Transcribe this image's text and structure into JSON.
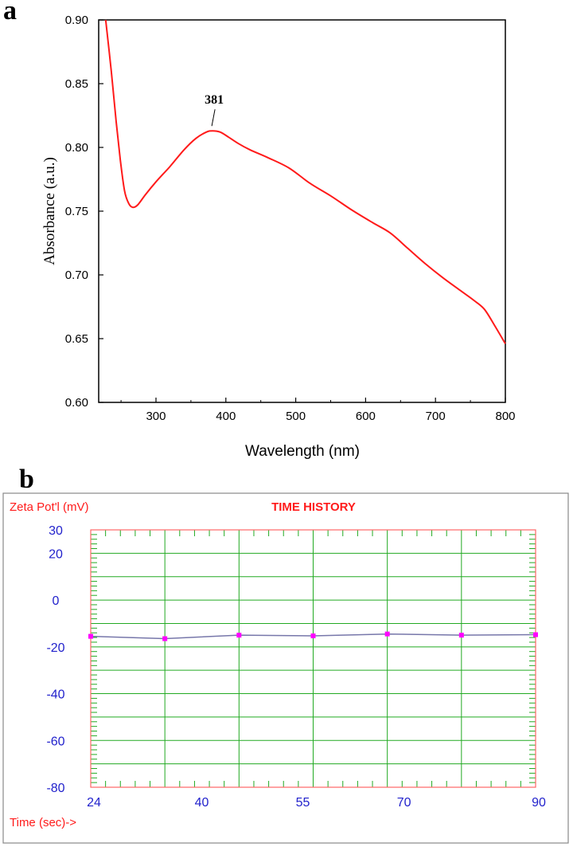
{
  "chart_data": [
    {
      "panel": "a",
      "type": "line",
      "xlabel": "Wavelength (nm)",
      "ylabel": "Absorbance (a.u.)",
      "xlim": [
        218,
        800
      ],
      "ylim": [
        0.6,
        0.9
      ],
      "xticks": [
        300,
        400,
        500,
        600,
        700,
        800
      ],
      "xtick_labels": [
        "300",
        "400",
        "500",
        "600",
        "700",
        "800"
      ],
      "yticks": [
        0.6,
        0.65,
        0.7,
        0.75,
        0.8,
        0.85,
        0.9
      ],
      "ytick_labels": [
        "0.60",
        "0.65",
        "0.70",
        "0.75",
        "0.80",
        "0.85",
        "0.90"
      ],
      "annotation": {
        "text": "381",
        "x": 381,
        "y": 0.813
      },
      "color": "#ff1a1a",
      "series": [
        {
          "name": "Absorbance",
          "x": [
            228,
            236,
            243,
            249,
            255,
            261,
            267,
            274,
            285,
            300,
            320,
            340,
            357,
            372,
            381,
            392,
            404,
            418,
            435,
            460,
            490,
            520,
            550,
            580,
            610,
            635,
            660,
            685,
            710,
            735,
            755,
            770,
            785,
            800
          ],
          "y": [
            0.9,
            0.86,
            0.82,
            0.79,
            0.766,
            0.756,
            0.753,
            0.755,
            0.763,
            0.773,
            0.785,
            0.798,
            0.807,
            0.812,
            0.813,
            0.812,
            0.808,
            0.803,
            0.798,
            0.792,
            0.784,
            0.772,
            0.762,
            0.751,
            0.741,
            0.733,
            0.721,
            0.709,
            0.698,
            0.688,
            0.68,
            0.673,
            0.66,
            0.646
          ]
        }
      ]
    },
    {
      "panel": "b",
      "type": "line",
      "title": "TIME HISTORY",
      "ylabel": "Zeta Pot'l (mV)",
      "xlabel": "Time (sec)->",
      "ylim": [
        -80,
        30
      ],
      "xlim": [
        24,
        90
      ],
      "ytick_labels": [
        "30",
        "20",
        "0",
        "-20",
        "-40",
        "-60",
        "-80"
      ],
      "yticks": [
        30,
        20,
        0,
        -20,
        -40,
        -60,
        -80
      ],
      "xtick_labels": [
        "24",
        "40",
        "55",
        "70",
        "90"
      ],
      "xticks": [
        24,
        40,
        55,
        70,
        90
      ],
      "grid": true,
      "series": [
        {
          "name": "Zeta potential",
          "x": [
            24,
            35,
            46,
            57,
            68,
            79,
            90
          ],
          "y": [
            -15.5,
            -16.5,
            -15.0,
            -15.3,
            -14.5,
            -15.0,
            -14.8
          ]
        }
      ]
    }
  ],
  "panel_letters": {
    "a": "a",
    "b": "b"
  },
  "colors": {
    "curve_a": "#ff1a1a",
    "grid_b": "#22aa22",
    "frame_b": "#ff6666",
    "line_b": "#7777aa",
    "marker_b": "#ff00ff",
    "label_b": "#ff1a1a",
    "tick_b": "#2222cc"
  }
}
